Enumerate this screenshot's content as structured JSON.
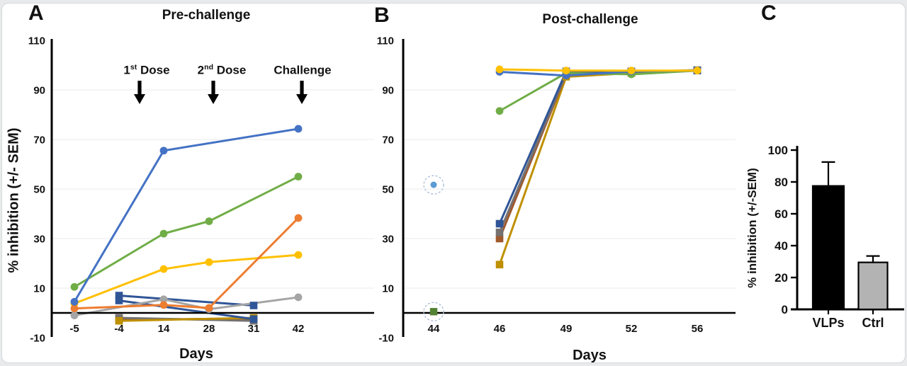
{
  "figure": {
    "panelA": {
      "letter": "A",
      "title": "Pre-challenge",
      "y_axis_label": "% inhibition (+/- SEM)",
      "x_axis_label": "Days",
      "annotations": [
        {
          "pre": "1",
          "sup": "st",
          "post": " Dose"
        },
        {
          "pre": "2",
          "sup": "nd",
          "post": " Dose"
        },
        {
          "pre": "Challenge",
          "sup": "",
          "post": ""
        }
      ]
    },
    "panelB": {
      "letter": "B",
      "title": "Post-challenge",
      "x_axis_label": "Days"
    },
    "panelC": {
      "letter": "C",
      "y_axis_label": "% inhibition (+/-SEM)"
    }
  },
  "colors": {
    "vlp_blue": "#4472C4",
    "vlp_green": "#70AD47",
    "vlp_yellow": "#FFC000",
    "vlp_orange": "#ED7D31",
    "vlp_gray": "#A5A5A5",
    "ctrl_navy": "#2F5597",
    "ctrl_gray": "#757171",
    "ctrl_brown": "#A0592C",
    "ctrl_olive": "#BF9000",
    "ctrl_green": "#548235",
    "outlier_blue": "#5B9BD5",
    "bar_black": "#000000",
    "bar_gray": "#b3b3b3"
  },
  "chart_data": [
    {
      "id": "A",
      "type": "line",
      "title": "Pre-challenge",
      "xlabel": "Days",
      "ylabel": "% inhibition (+/- SEM)",
      "x_categories": [
        "-5",
        "-4",
        "14",
        "28",
        "31",
        "42"
      ],
      "y_ticks": [
        110,
        90,
        70,
        50,
        30,
        10,
        -10
      ],
      "grid_values": [
        90,
        70,
        50,
        30,
        10
      ],
      "ylim": [
        -10,
        110
      ],
      "legend": "none",
      "annotations": [
        "1st Dose",
        "2nd Dose",
        "Challenge"
      ],
      "series": [
        {
          "name": "ctrl-green",
          "group": "control",
          "marker": "square",
          "color": "#548235",
          "points": [
            [
              "-4",
              -2.4
            ],
            [
              "31",
              -2.8
            ]
          ]
        },
        {
          "name": "ctrl-brown",
          "group": "control",
          "marker": "square",
          "color": "#A0592C",
          "points": [
            [
              "-4",
              -2.8
            ],
            [
              "31",
              -2.2
            ]
          ]
        },
        {
          "name": "ctrl-gray",
          "group": "control",
          "marker": "square",
          "color": "#757171",
          "points": [
            [
              "-4",
              -2.0
            ],
            [
              "31",
              -3.2
            ]
          ]
        },
        {
          "name": "ctrl-olive",
          "group": "control",
          "marker": "square",
          "color": "#BF9000",
          "points": [
            [
              "-4",
              -3.2
            ],
            [
              "31",
              -2.0
            ]
          ]
        },
        {
          "name": "ctrl-navy-b",
          "group": "control",
          "marker": "square",
          "color": "#2F5597",
          "points": [
            [
              "-4",
              5.0
            ],
            [
              "31",
              -2.5
            ]
          ]
        },
        {
          "name": "ctrl-navy-a",
          "group": "control",
          "marker": "square",
          "color": "#2F5597",
          "points": [
            [
              "-4",
              7.0
            ],
            [
              "31",
              3.0
            ]
          ]
        },
        {
          "name": "vlp-gray",
          "group": "VLP",
          "marker": "circle",
          "color": "#A5A5A5",
          "points": [
            [
              "-5",
              -1.0
            ],
            [
              "14",
              5.5
            ],
            [
              "28",
              1.5
            ],
            [
              "42",
              6.3
            ]
          ]
        },
        {
          "name": "vlp-yellow",
          "group": "VLP",
          "marker": "circle",
          "color": "#FFC000",
          "points": [
            [
              "-5",
              3.8
            ],
            [
              "14",
              17.7
            ],
            [
              "28",
              20.5
            ],
            [
              "42",
              23.4
            ]
          ]
        },
        {
          "name": "vlp-orange",
          "group": "VLP",
          "marker": "circle",
          "color": "#ED7D31",
          "points": [
            [
              "-5",
              1.8
            ],
            [
              "14",
              3.2
            ],
            [
              "28",
              2.0
            ],
            [
              "42",
              38.3
            ]
          ]
        },
        {
          "name": "vlp-green",
          "group": "VLP",
          "marker": "circle",
          "color": "#70AD47",
          "points": [
            [
              "-5",
              10.5
            ],
            [
              "14",
              32.0
            ],
            [
              "28",
              37.0
            ],
            [
              "42",
              55.0
            ]
          ]
        },
        {
          "name": "vlp-blue",
          "group": "VLP",
          "marker": "circle",
          "color": "#4472C4",
          "points": [
            [
              "-5",
              4.5
            ],
            [
              "14",
              65.5
            ],
            [
              "42",
              74.3
            ]
          ]
        }
      ]
    },
    {
      "id": "B",
      "type": "line",
      "title": "Post-challenge",
      "xlabel": "Days",
      "x_categories": [
        "44",
        "46",
        "49",
        "52",
        "56"
      ],
      "y_ticks": [
        110,
        90,
        70,
        50,
        30,
        10,
        -10
      ],
      "grid_values": [
        90,
        70,
        50,
        30,
        10
      ],
      "ylim": [
        -10,
        110
      ],
      "legend": "none",
      "series": [
        {
          "name": "ctrl-olive",
          "group": "control",
          "marker": "square",
          "color": "#BF9000",
          "points": [
            [
              "46",
              19.5
            ],
            [
              "49",
              95.3
            ],
            [
              "52",
              96.8
            ],
            [
              "56",
              97.8
            ]
          ]
        },
        {
          "name": "ctrl-brown",
          "group": "control",
          "marker": "square",
          "color": "#A0592C",
          "points": [
            [
              "46",
              30.0
            ],
            [
              "49",
              96.3
            ],
            [
              "52",
              97.0
            ],
            [
              "56",
              97.8
            ]
          ]
        },
        {
          "name": "ctrl-gray",
          "group": "control",
          "marker": "square",
          "color": "#757171",
          "points": [
            [
              "46",
              32.5
            ],
            [
              "49",
              96.6
            ],
            [
              "52",
              97.2
            ],
            [
              "56",
              98.0
            ]
          ]
        },
        {
          "name": "ctrl-navy",
          "group": "control",
          "marker": "square",
          "color": "#2F5597",
          "points": [
            [
              "46",
              36.0
            ],
            [
              "49",
              97.5
            ],
            [
              "52",
              97.5
            ],
            [
              "56",
              97.8
            ]
          ]
        },
        {
          "name": "vlp-green",
          "group": "VLP",
          "marker": "circle",
          "color": "#70AD47",
          "points": [
            [
              "46",
              81.5
            ],
            [
              "49",
              96.8
            ],
            [
              "52",
              96.3
            ],
            [
              "56",
              97.8
            ]
          ]
        },
        {
          "name": "vlp-blue",
          "group": "VLP",
          "marker": "circle",
          "color": "#4472C4",
          "points": [
            [
              "46",
              97.3
            ],
            [
              "49",
              95.8
            ],
            [
              "52",
              97.5
            ],
            [
              "56",
              97.8
            ]
          ]
        },
        {
          "name": "vlp-yellow",
          "group": "VLP",
          "marker": "circle",
          "color": "#FFC000",
          "points": [
            [
              "46",
              98.3
            ],
            [
              "49",
              97.8
            ],
            [
              "52",
              97.8
            ],
            [
              "56",
              97.8
            ]
          ]
        }
      ],
      "outlier_points": [
        {
          "name": "vlp-blue-day44",
          "marker": "circle",
          "color": "#5B9BD5",
          "x": "44",
          "y": 51.7,
          "ring": true,
          "size": 4.5
        },
        {
          "name": "ctrl-green-day44",
          "marker": "square",
          "color": "#548235",
          "x": "44",
          "y": 0.5,
          "ring": true,
          "size": 5.2
        }
      ]
    },
    {
      "id": "C",
      "type": "bar",
      "ylabel": "% inhibition (+/-SEM)",
      "categories": [
        "VLPs",
        "Ctrl"
      ],
      "values": [
        77.5,
        29.5
      ],
      "errors_sem": [
        15,
        4
      ],
      "bar_colors": [
        "#000000",
        "#b3b3b3"
      ],
      "y_ticks": [
        0,
        20,
        40,
        60,
        80,
        100
      ],
      "ylim": [
        0,
        100
      ]
    }
  ]
}
